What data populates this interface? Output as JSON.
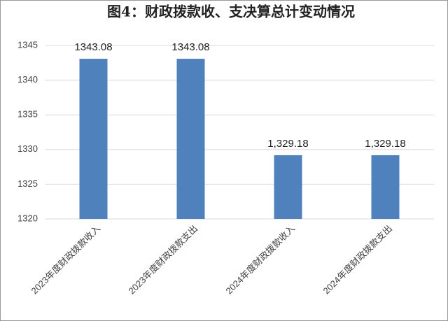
{
  "chart_data": {
    "type": "bar",
    "title": "图4：财政拨款收、支决算总计变动情况",
    "categories": [
      "2023年度财政拨款收入",
      "2023年度财政拨款支出",
      "2024年度财政拨款收入",
      "2024年度财政拨款支出"
    ],
    "values": [
      1343.08,
      1343.08,
      1329.18,
      1329.18
    ],
    "value_labels": [
      "1343.08",
      "1343.08",
      "1,329.18",
      "1,329.18"
    ],
    "color": "#4f81bd",
    "ylim": [
      1320,
      1345
    ],
    "yticks": [
      1320,
      1325,
      1330,
      1335,
      1340,
      1345
    ],
    "grid": true
  }
}
